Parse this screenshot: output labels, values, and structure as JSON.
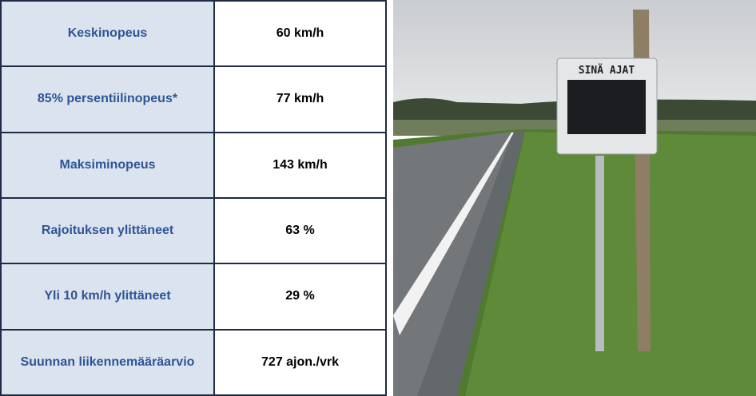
{
  "table": {
    "rows": [
      [
        "Keskinopeus",
        "60 km/h"
      ],
      [
        "85% persentiilinopeus*",
        "77 km/h"
      ],
      [
        "Maksiminopeus",
        "143 km/h"
      ],
      [
        "Rajoituksen ylittäneet",
        "63 %"
      ],
      [
        "Yli 10 km/h ylittäneet",
        "29 %"
      ],
      [
        "Suunnan liikennemääräarvio",
        "727 ajon./vrk"
      ]
    ]
  },
  "photo": {
    "sign_text": "SINÄ AJAT"
  }
}
